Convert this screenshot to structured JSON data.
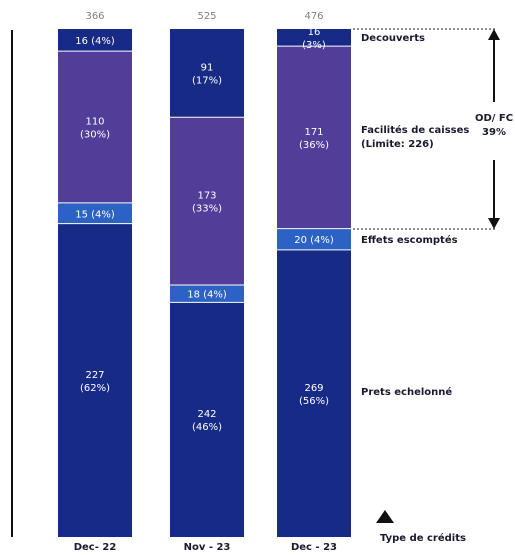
{
  "chart_data": {
    "type": "bar",
    "stacked": true,
    "categories": [
      "Dec- 22",
      "Nov - 23",
      "Dec - 23"
    ],
    "totals": [
      "366",
      "525",
      "476"
    ],
    "series": [
      {
        "name": "Prets echelonné",
        "color": "#172b86",
        "values": [
          227,
          242,
          269
        ],
        "labels": [
          [
            "227",
            "(62%)"
          ],
          [
            "242",
            "(46%)"
          ],
          [
            "269",
            "(56%)"
          ]
        ]
      },
      {
        "name": "Effets escomptés",
        "color": "#2b62c3",
        "values": [
          15,
          18,
          20
        ],
        "labels": [
          [
            "15 (4%)"
          ],
          [
            "18 (4%)"
          ],
          [
            "20 (4%)"
          ]
        ]
      },
      {
        "name": "Facilités de caisses (Limite: 226)",
        "color": "#523d99",
        "values": [
          110,
          173,
          171
        ],
        "labels": [
          [
            "110",
            "(30%)"
          ],
          [
            "173",
            "(33%)"
          ],
          [
            "171",
            "(36%)"
          ]
        ]
      },
      {
        "name": "Decouverts",
        "color": "#172b86",
        "values": [
          16,
          91,
          16
        ],
        "labels": [
          [
            "16 (4%)"
          ],
          [
            "91",
            "(17%)"
          ],
          [
            "16",
            "(3%)"
          ]
        ]
      }
    ],
    "side_labels": {
      "decouverts": [
        "Decouverts"
      ],
      "facilites": [
        "Facilités de caisses",
        "(Limite: 226)"
      ],
      "effets": [
        "Effets escomptés"
      ],
      "prets": [
        "Prets echelonné"
      ]
    },
    "annotation": [
      "OD/ FC",
      "39%"
    ],
    "legend_label": "Type de crédits"
  }
}
